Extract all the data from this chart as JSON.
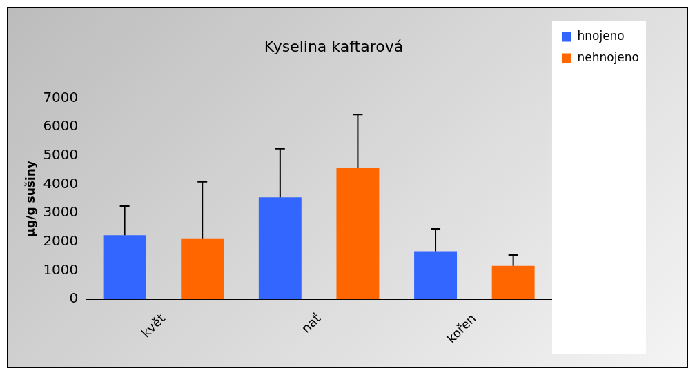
{
  "chart_data": {
    "type": "bar",
    "title": "Kyselina kaftarová",
    "ylabel": "µg/g sušiny",
    "categories": [
      "květ",
      "nať",
      "kořen"
    ],
    "series": [
      {
        "name": "hnojeno",
        "color": "#3366ff",
        "values": [
          2230,
          3550,
          1670
        ],
        "errors": [
          [
            2230,
            3240
          ],
          [
            3550,
            5240
          ],
          [
            1670,
            2450
          ]
        ]
      },
      {
        "name": "nehnojeno",
        "color": "#ff6600",
        "values": [
          2120,
          4580,
          1160
        ],
        "errors": [
          [
            2120,
            4090
          ],
          [
            4580,
            6430
          ],
          [
            1160,
            1540
          ]
        ]
      }
    ],
    "ylim": [
      0,
      7000
    ],
    "yticks": [
      0,
      1000,
      2000,
      3000,
      4000,
      5000,
      6000,
      7000
    ],
    "grid": false,
    "legend": "top right"
  }
}
